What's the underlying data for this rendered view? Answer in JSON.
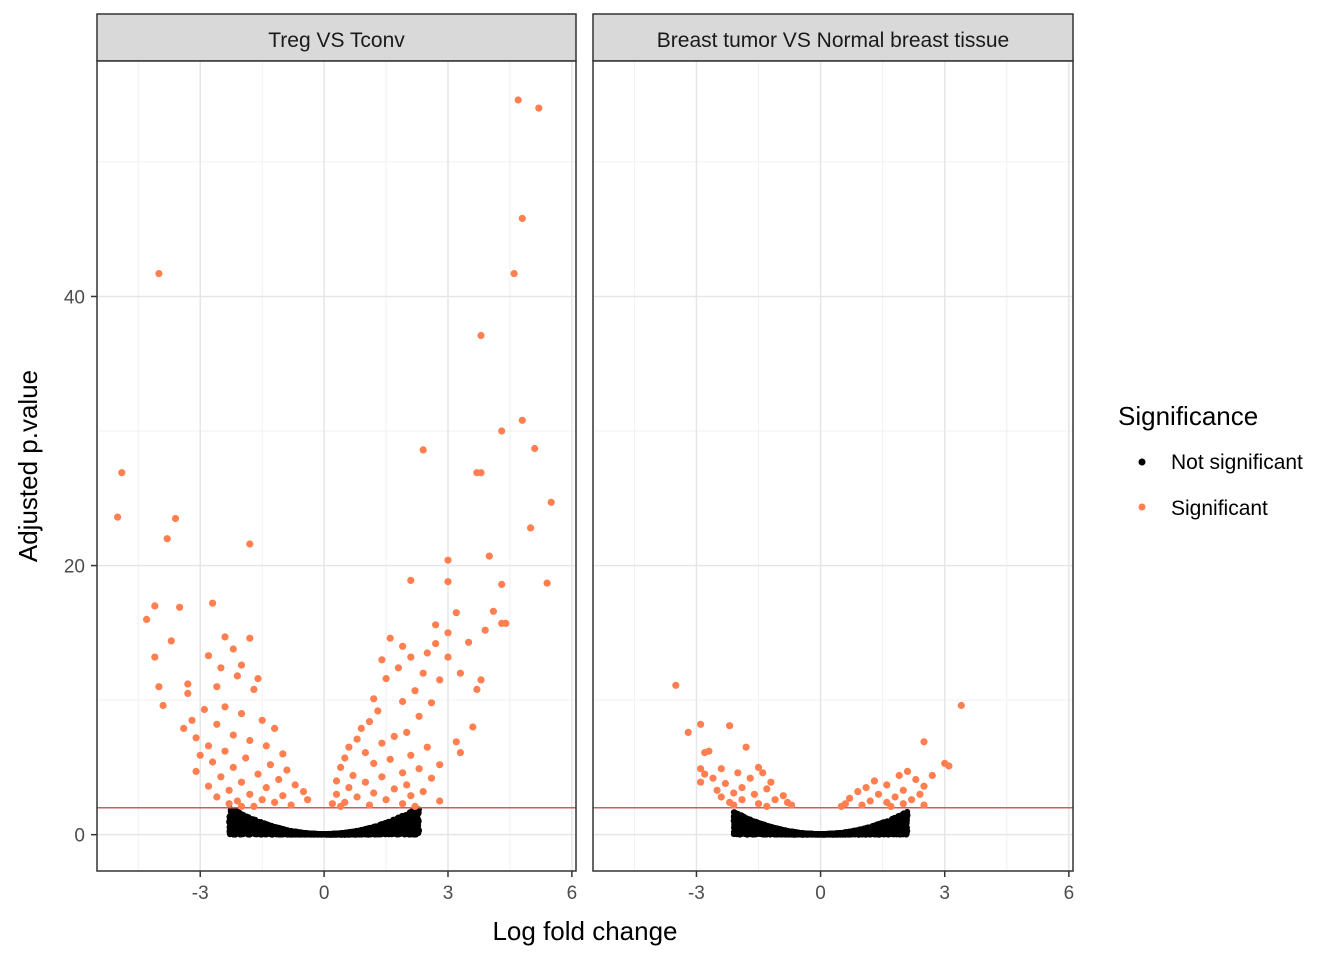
{
  "chart_data": {
    "type": "scatter",
    "xlabel": "Log fold change",
    "ylabel": "Adjusted p.value",
    "xlim": [
      -5.5,
      6.1
    ],
    "ylim": [
      -2.7,
      57.5
    ],
    "x_ticks": [
      -3,
      0,
      3,
      6
    ],
    "x_tick_labels": [
      "-3",
      "0",
      "3",
      "6"
    ],
    "y_ticks": [
      0,
      20,
      40
    ],
    "y_tick_labels": [
      "0",
      "20",
      "40"
    ],
    "grid": true,
    "threshold_line": {
      "y": 2,
      "color": "#cd5c5c"
    },
    "legend": {
      "title": "Significance",
      "position": "right",
      "entries": [
        {
          "label": "Not significant",
          "color": "#000000"
        },
        {
          "label": "Significant",
          "color": "#ff7f50"
        }
      ]
    },
    "panels": [
      {
        "title": "Treg VS Tconv",
        "significant_points": [
          [
            4.7,
            54.6
          ],
          [
            5.2,
            54.0
          ],
          [
            4.8,
            45.8
          ],
          [
            -4.0,
            41.7
          ],
          [
            4.6,
            41.7
          ],
          [
            3.8,
            37.1
          ],
          [
            4.8,
            30.8
          ],
          [
            4.3,
            30.0
          ],
          [
            5.1,
            28.7
          ],
          [
            2.4,
            28.6
          ],
          [
            -4.9,
            26.9
          ],
          [
            3.7,
            26.9
          ],
          [
            3.8,
            26.9
          ],
          [
            5.5,
            24.7
          ],
          [
            -5.0,
            23.6
          ],
          [
            -3.6,
            23.5
          ],
          [
            5.0,
            22.8
          ],
          [
            -3.8,
            22.0
          ],
          [
            -1.8,
            21.6
          ],
          [
            4.0,
            20.7
          ],
          [
            3.0,
            20.4
          ],
          [
            2.1,
            18.9
          ],
          [
            3.0,
            18.8
          ],
          [
            5.4,
            18.7
          ],
          [
            4.3,
            18.6
          ],
          [
            -2.7,
            17.2
          ],
          [
            -4.1,
            17.0
          ],
          [
            -3.5,
            16.9
          ],
          [
            4.1,
            16.6
          ],
          [
            3.2,
            16.5
          ],
          [
            -4.3,
            16.0
          ],
          [
            4.4,
            15.7
          ],
          [
            4.3,
            15.7
          ],
          [
            2.7,
            15.6
          ],
          [
            3.9,
            15.2
          ],
          [
            3.0,
            15.0
          ],
          [
            -2.4,
            14.7
          ],
          [
            -1.8,
            14.6
          ],
          [
            1.6,
            14.6
          ],
          [
            -3.7,
            14.4
          ],
          [
            2.7,
            14.2
          ],
          [
            3.5,
            14.3
          ],
          [
            1.9,
            14.0
          ],
          [
            -2.2,
            13.8
          ],
          [
            2.5,
            13.5
          ],
          [
            -4.1,
            13.2
          ],
          [
            -2.8,
            13.3
          ],
          [
            2.1,
            13.2
          ],
          [
            1.4,
            13.0
          ],
          [
            3.0,
            13.2
          ],
          [
            -2.0,
            12.6
          ],
          [
            -2.5,
            12.4
          ],
          [
            1.8,
            12.4
          ],
          [
            3.3,
            12.0
          ],
          [
            2.4,
            12.0
          ],
          [
            -2.1,
            11.8
          ],
          [
            1.5,
            11.6
          ],
          [
            -1.6,
            11.6
          ],
          [
            2.8,
            11.5
          ],
          [
            3.8,
            11.5
          ],
          [
            -3.3,
            11.2
          ],
          [
            -4.0,
            11.0
          ],
          [
            -2.6,
            11.0
          ],
          [
            -1.7,
            10.8
          ],
          [
            2.2,
            10.7
          ],
          [
            3.7,
            10.8
          ],
          [
            -3.3,
            10.5
          ],
          [
            1.2,
            10.1
          ],
          [
            -3.9,
            9.6
          ],
          [
            1.9,
            9.9
          ],
          [
            -2.4,
            9.5
          ],
          [
            2.6,
            9.8
          ],
          [
            -2.9,
            9.3
          ],
          [
            -2.0,
            9.0
          ],
          [
            1.3,
            9.2
          ],
          [
            -3.2,
            8.5
          ],
          [
            2.3,
            8.8
          ],
          [
            -1.5,
            8.5
          ],
          [
            1.1,
            8.4
          ],
          [
            -2.6,
            8.2
          ],
          [
            -3.4,
            7.9
          ],
          [
            3.6,
            8.0
          ],
          [
            0.9,
            7.9
          ],
          [
            -1.2,
            7.9
          ],
          [
            2.0,
            7.6
          ],
          [
            -2.2,
            7.4
          ],
          [
            1.7,
            7.3
          ],
          [
            -3.1,
            7.2
          ],
          [
            0.8,
            7.1
          ],
          [
            -1.8,
            7.0
          ],
          [
            3.2,
            6.9
          ],
          [
            -2.8,
            6.6
          ],
          [
            1.4,
            6.8
          ],
          [
            -1.4,
            6.6
          ],
          [
            0.6,
            6.5
          ],
          [
            2.5,
            6.5
          ],
          [
            -2.4,
            6.2
          ],
          [
            1.0,
            6.1
          ],
          [
            -1.0,
            6.0
          ],
          [
            3.3,
            6.1
          ],
          [
            -3.0,
            5.9
          ],
          [
            2.1,
            5.9
          ],
          [
            -1.9,
            5.7
          ],
          [
            0.5,
            5.7
          ],
          [
            1.6,
            5.6
          ],
          [
            -2.7,
            5.4
          ],
          [
            -1.3,
            5.2
          ],
          [
            1.2,
            5.3
          ],
          [
            0.4,
            5.0
          ],
          [
            2.8,
            5.2
          ],
          [
            -2.2,
            5.0
          ],
          [
            -0.9,
            4.8
          ],
          [
            2.3,
            4.9
          ],
          [
            -3.1,
            4.7
          ],
          [
            1.9,
            4.6
          ],
          [
            -1.6,
            4.5
          ],
          [
            0.7,
            4.4
          ],
          [
            -2.5,
            4.3
          ],
          [
            1.4,
            4.3
          ],
          [
            -1.1,
            4.1
          ],
          [
            2.6,
            4.2
          ],
          [
            0.3,
            4.0
          ],
          [
            -2.0,
            3.9
          ],
          [
            1.0,
            3.9
          ],
          [
            -0.7,
            3.7
          ],
          [
            -2.8,
            3.6
          ],
          [
            2.0,
            3.7
          ],
          [
            -1.4,
            3.5
          ],
          [
            0.6,
            3.5
          ],
          [
            1.7,
            3.4
          ],
          [
            -2.3,
            3.3
          ],
          [
            -0.5,
            3.2
          ],
          [
            2.4,
            3.2
          ],
          [
            1.2,
            3.1
          ],
          [
            -1.8,
            3.0
          ],
          [
            0.3,
            3.0
          ],
          [
            -1.0,
            2.9
          ],
          [
            2.1,
            2.9
          ],
          [
            -2.6,
            2.8
          ],
          [
            0.8,
            2.8
          ],
          [
            -1.5,
            2.6
          ],
          [
            1.5,
            2.6
          ],
          [
            -0.4,
            2.6
          ],
          [
            -2.1,
            2.5
          ],
          [
            2.8,
            2.5
          ],
          [
            0.5,
            2.4
          ],
          [
            -1.2,
            2.4
          ],
          [
            1.9,
            2.3
          ],
          [
            -2.3,
            2.3
          ],
          [
            0.2,
            2.3
          ],
          [
            -0.8,
            2.2
          ],
          [
            1.1,
            2.2
          ],
          [
            -1.7,
            2.1
          ],
          [
            2.2,
            2.1
          ],
          [
            -2.0,
            2.1
          ],
          [
            0.4,
            2.1
          ]
        ]
      },
      {
        "title": "Breast tumor VS Normal breast tissue",
        "significant_points": [
          [
            3.4,
            9.6
          ],
          [
            -3.5,
            11.1
          ],
          [
            -2.9,
            8.2
          ],
          [
            -2.2,
            8.1
          ],
          [
            -3.2,
            7.6
          ],
          [
            2.5,
            6.9
          ],
          [
            -1.8,
            6.5
          ],
          [
            -2.8,
            6.1
          ],
          [
            -2.7,
            6.2
          ],
          [
            3.1,
            5.1
          ],
          [
            3.0,
            5.3
          ],
          [
            -1.5,
            5.0
          ],
          [
            -2.9,
            4.9
          ],
          [
            -2.4,
            4.9
          ],
          [
            2.1,
            4.7
          ],
          [
            -2.8,
            4.5
          ],
          [
            -2.0,
            4.6
          ],
          [
            -1.4,
            4.6
          ],
          [
            1.9,
            4.4
          ],
          [
            2.7,
            4.4
          ],
          [
            -2.6,
            4.2
          ],
          [
            -1.7,
            4.2
          ],
          [
            1.3,
            4.0
          ],
          [
            2.3,
            4.1
          ],
          [
            -2.3,
            3.8
          ],
          [
            -1.2,
            3.9
          ],
          [
            -2.9,
            3.9
          ],
          [
            1.6,
            3.7
          ],
          [
            2.5,
            3.6
          ],
          [
            -1.9,
            3.5
          ],
          [
            1.1,
            3.5
          ],
          [
            -2.5,
            3.3
          ],
          [
            -1.3,
            3.4
          ],
          [
            2.0,
            3.3
          ],
          [
            0.9,
            3.2
          ],
          [
            -2.1,
            3.1
          ],
          [
            -1.6,
            3.0
          ],
          [
            1.4,
            3.0
          ],
          [
            2.4,
            3.0
          ],
          [
            -0.9,
            2.9
          ],
          [
            -2.4,
            2.8
          ],
          [
            1.8,
            2.8
          ],
          [
            0.7,
            2.7
          ],
          [
            -1.9,
            2.6
          ],
          [
            -1.1,
            2.6
          ],
          [
            2.2,
            2.6
          ],
          [
            1.2,
            2.5
          ],
          [
            -2.2,
            2.4
          ],
          [
            -0.8,
            2.4
          ],
          [
            1.6,
            2.4
          ],
          [
            0.6,
            2.3
          ],
          [
            -1.5,
            2.3
          ],
          [
            2.0,
            2.3
          ],
          [
            -2.1,
            2.2
          ],
          [
            -0.7,
            2.2
          ],
          [
            1.0,
            2.2
          ],
          [
            0.5,
            2.1
          ],
          [
            -1.3,
            2.1
          ],
          [
            1.7,
            2.1
          ],
          [
            2.5,
            2.2
          ]
        ]
      }
    ]
  }
}
